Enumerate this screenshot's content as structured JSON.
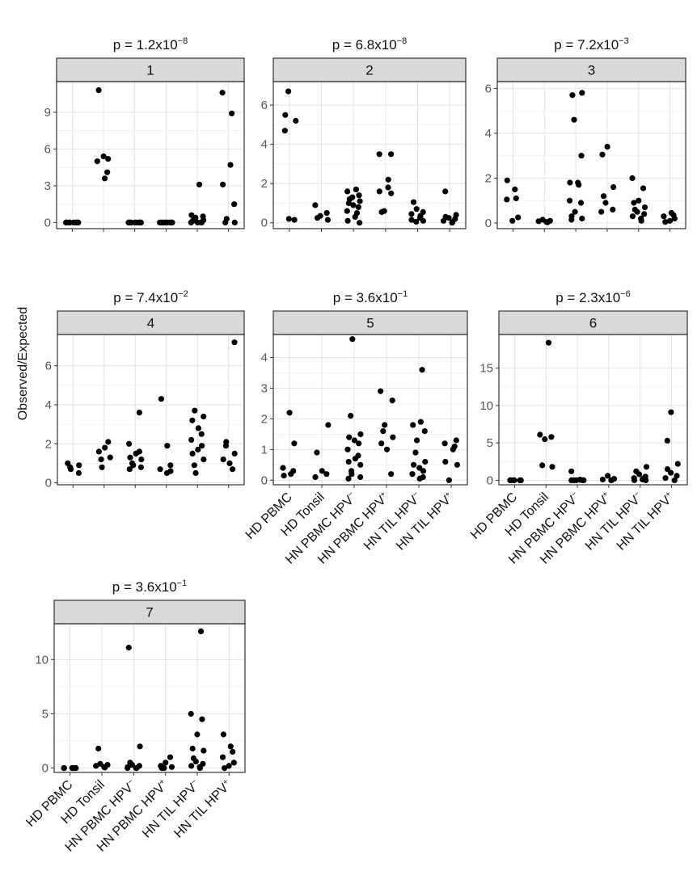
{
  "y_axis_label": "Observed/Expected",
  "chart_data": [
    {
      "type": "scatter",
      "panel": "1",
      "p_mant": "1.2",
      "p_exp": "−8",
      "categories": [
        "HD PBMC",
        "HD Tonsil",
        "HN PBMC HPV−",
        "HN PBMC HPV+",
        "HN TIL HPV−",
        "HN TIL HPV+"
      ],
      "ylim": [
        -0.5,
        11.5
      ],
      "yticks": [
        0,
        3,
        6,
        9
      ],
      "points": [
        [
          0,
          0
        ],
        [
          0,
          0
        ],
        [
          0,
          0
        ],
        [
          0,
          0
        ],
        [
          0,
          0
        ],
        [
          0,
          0
        ],
        [
          0,
          0
        ],
        [
          0,
          0
        ],
        [
          0,
          0
        ],
        [
          0,
          0
        ],
        [
          1,
          10.8
        ],
        [
          1,
          5.4
        ],
        [
          1,
          5.2
        ],
        [
          1,
          5.0
        ],
        [
          1,
          4.1
        ],
        [
          1,
          3.6
        ],
        [
          2,
          0
        ],
        [
          2,
          0
        ],
        [
          2,
          0
        ],
        [
          2,
          0
        ],
        [
          2,
          0
        ],
        [
          2,
          0
        ],
        [
          2,
          0
        ],
        [
          2,
          0
        ],
        [
          2,
          0
        ],
        [
          2,
          0
        ],
        [
          3,
          0
        ],
        [
          3,
          0
        ],
        [
          3,
          0
        ],
        [
          3,
          0
        ],
        [
          3,
          0
        ],
        [
          3,
          0
        ],
        [
          3,
          0
        ],
        [
          3,
          0
        ],
        [
          3,
          0
        ],
        [
          3,
          0
        ],
        [
          4,
          3.1
        ],
        [
          4,
          0.6
        ],
        [
          4,
          0.5
        ],
        [
          4,
          0.4
        ],
        [
          4,
          0.3
        ],
        [
          4,
          0.2
        ],
        [
          4,
          0.1
        ],
        [
          4,
          0
        ],
        [
          4,
          0
        ],
        [
          4,
          0
        ],
        [
          4,
          0
        ],
        [
          5,
          10.6
        ],
        [
          5,
          8.9
        ],
        [
          5,
          4.7
        ],
        [
          5,
          3.1
        ],
        [
          5,
          1.5
        ],
        [
          5,
          0.3
        ],
        [
          5,
          0
        ],
        [
          5,
          0
        ]
      ]
    },
    {
      "type": "scatter",
      "panel": "2",
      "p_mant": "6.8",
      "p_exp": "−8",
      "categories": [
        "HD PBMC",
        "HD Tonsil",
        "HN PBMC HPV−",
        "HN PBMC HPV+",
        "HN TIL HPV−",
        "HN TIL HPV+"
      ],
      "ylim": [
        -0.3,
        7.2
      ],
      "yticks": [
        0,
        2,
        4,
        6
      ],
      "points": [
        [
          0,
          6.7
        ],
        [
          0,
          5.5
        ],
        [
          0,
          5.2
        ],
        [
          0,
          4.7
        ],
        [
          0,
          0.2
        ],
        [
          0,
          0.15
        ],
        [
          1,
          0.9
        ],
        [
          1,
          0.5
        ],
        [
          1,
          0.35
        ],
        [
          1,
          0.25
        ],
        [
          1,
          0.15
        ],
        [
          2,
          1.7
        ],
        [
          2,
          1.7
        ],
        [
          2,
          1.6
        ],
        [
          2,
          1.4
        ],
        [
          2,
          1.3
        ],
        [
          2,
          1.2
        ],
        [
          2,
          1.1
        ],
        [
          2,
          1.0
        ],
        [
          2,
          0.9
        ],
        [
          2,
          0.8
        ],
        [
          2,
          0.6
        ],
        [
          2,
          0.5
        ],
        [
          2,
          0.3
        ],
        [
          2,
          0.1
        ],
        [
          2,
          0
        ],
        [
          3,
          3.5
        ],
        [
          3,
          3.5
        ],
        [
          3,
          2.2
        ],
        [
          3,
          1.8
        ],
        [
          3,
          1.6
        ],
        [
          3,
          1.5
        ],
        [
          3,
          0.6
        ],
        [
          3,
          0.55
        ],
        [
          4,
          1.05
        ],
        [
          4,
          0.7
        ],
        [
          4,
          0.55
        ],
        [
          4,
          0.45
        ],
        [
          4,
          0.35
        ],
        [
          4,
          0.25
        ],
        [
          4,
          0.15
        ],
        [
          4,
          0.1
        ],
        [
          4,
          0.05
        ],
        [
          5,
          1.6
        ],
        [
          5,
          0.4
        ],
        [
          5,
          0.3
        ],
        [
          5,
          0.25
        ],
        [
          5,
          0.2
        ],
        [
          5,
          0.1
        ],
        [
          5,
          0.05
        ],
        [
          5,
          0
        ]
      ]
    },
    {
      "type": "scatter",
      "panel": "3",
      "p_mant": "7.2",
      "p_exp": "−3",
      "categories": [
        "HD PBMC",
        "HD Tonsil",
        "HN PBMC HPV−",
        "HN PBMC HPV+",
        "HN TIL HPV−",
        "HN TIL HPV+"
      ],
      "ylim": [
        -0.25,
        6.3
      ],
      "yticks": [
        0,
        2,
        4,
        6
      ],
      "points": [
        [
          0,
          1.9
        ],
        [
          0,
          1.5
        ],
        [
          0,
          1.1
        ],
        [
          0,
          1.05
        ],
        [
          0,
          0.25
        ],
        [
          0,
          0.1
        ],
        [
          1,
          0.15
        ],
        [
          1,
          0.1
        ],
        [
          1,
          0.08
        ],
        [
          1,
          0.05
        ],
        [
          1,
          0.03
        ],
        [
          2,
          5.8
        ],
        [
          2,
          5.7
        ],
        [
          2,
          4.6
        ],
        [
          2,
          3.0
        ],
        [
          2,
          1.8
        ],
        [
          2,
          1.8
        ],
        [
          2,
          1.7
        ],
        [
          2,
          1.0
        ],
        [
          2,
          0.9
        ],
        [
          2,
          0.5
        ],
        [
          2,
          0.3
        ],
        [
          2,
          0.2
        ],
        [
          2,
          0.15
        ],
        [
          3,
          3.4
        ],
        [
          3,
          3.05
        ],
        [
          3,
          1.6
        ],
        [
          3,
          1.2
        ],
        [
          3,
          0.9
        ],
        [
          3,
          0.6
        ],
        [
          3,
          0.5
        ],
        [
          4,
          2.0
        ],
        [
          4,
          1.55
        ],
        [
          4,
          1.0
        ],
        [
          4,
          0.9
        ],
        [
          4,
          0.7
        ],
        [
          4,
          0.6
        ],
        [
          4,
          0.5
        ],
        [
          4,
          0.4
        ],
        [
          4,
          0.3
        ],
        [
          4,
          0.2
        ],
        [
          4,
          0.1
        ],
        [
          5,
          0.45
        ],
        [
          5,
          0.35
        ],
        [
          5,
          0.3
        ],
        [
          5,
          0.2
        ],
        [
          5,
          0.1
        ],
        [
          5,
          0.05
        ]
      ]
    },
    {
      "type": "scatter",
      "panel": "4",
      "p_mant": "7.4",
      "p_exp": "−2",
      "categories": [
        "HD PBMC",
        "HD Tonsil",
        "HN PBMC HPV−",
        "HN PBMC HPV+",
        "HN TIL HPV−",
        "HN TIL HPV+"
      ],
      "ylim": [
        -0.1,
        7.6
      ],
      "yticks": [
        0,
        2,
        4,
        6
      ],
      "points": [
        [
          0,
          1.0
        ],
        [
          0,
          0.9
        ],
        [
          0,
          0.8
        ],
        [
          0,
          0.7
        ],
        [
          0,
          0.5
        ],
        [
          1,
          2.1
        ],
        [
          1,
          1.8
        ],
        [
          1,
          1.6
        ],
        [
          1,
          1.3
        ],
        [
          1,
          1.2
        ],
        [
          1,
          0.8
        ],
        [
          2,
          3.6
        ],
        [
          2,
          2.0
        ],
        [
          2,
          1.6
        ],
        [
          2,
          1.5
        ],
        [
          2,
          1.3
        ],
        [
          2,
          1.2
        ],
        [
          2,
          1.0
        ],
        [
          2,
          0.9
        ],
        [
          2,
          0.8
        ],
        [
          2,
          0.7
        ],
        [
          3,
          4.3
        ],
        [
          3,
          1.9
        ],
        [
          3,
          0.9
        ],
        [
          3,
          0.7
        ],
        [
          3,
          0.6
        ],
        [
          3,
          0.5
        ],
        [
          4,
          3.7
        ],
        [
          4,
          3.4
        ],
        [
          4,
          3.2
        ],
        [
          4,
          2.8
        ],
        [
          4,
          2.5
        ],
        [
          4,
          2.2
        ],
        [
          4,
          1.9
        ],
        [
          4,
          1.7
        ],
        [
          4,
          1.5
        ],
        [
          4,
          1.2
        ],
        [
          4,
          0.9
        ],
        [
          4,
          0.5
        ],
        [
          5,
          7.2
        ],
        [
          5,
          2.1
        ],
        [
          5,
          1.9
        ],
        [
          5,
          1.5
        ],
        [
          5,
          1.2
        ],
        [
          5,
          1.0
        ],
        [
          5,
          0.7
        ]
      ]
    },
    {
      "type": "scatter",
      "panel": "5",
      "p_mant": "3.6",
      "p_exp": "−1",
      "categories": [
        "HD PBMC",
        "HD Tonsil",
        "HN PBMC HPV−",
        "HN PBMC HPV+",
        "HN TIL HPV−",
        "HN TIL HPV+"
      ],
      "ylim": [
        -0.15,
        4.75
      ],
      "yticks": [
        0,
        1,
        2,
        3,
        4
      ],
      "points": [
        [
          0,
          2.2
        ],
        [
          0,
          1.2
        ],
        [
          0,
          0.4
        ],
        [
          0,
          0.3
        ],
        [
          0,
          0.2
        ],
        [
          0,
          0.15
        ],
        [
          1,
          1.8
        ],
        [
          1,
          0.9
        ],
        [
          1,
          0.3
        ],
        [
          1,
          0.2
        ],
        [
          1,
          0.1
        ],
        [
          2,
          4.6
        ],
        [
          2,
          2.1
        ],
        [
          2,
          1.5
        ],
        [
          2,
          1.4
        ],
        [
          2,
          1.3
        ],
        [
          2,
          1.2
        ],
        [
          2,
          1.0
        ],
        [
          2,
          0.8
        ],
        [
          2,
          0.7
        ],
        [
          2,
          0.6
        ],
        [
          2,
          0.5
        ],
        [
          2,
          0.3
        ],
        [
          2,
          0.2
        ],
        [
          2,
          0.1
        ],
        [
          2,
          0.05
        ],
        [
          3,
          2.9
        ],
        [
          3,
          2.6
        ],
        [
          3,
          1.8
        ],
        [
          3,
          1.6
        ],
        [
          3,
          1.4
        ],
        [
          3,
          1.2
        ],
        [
          3,
          1.0
        ],
        [
          3,
          0.2
        ],
        [
          4,
          3.6
        ],
        [
          4,
          1.9
        ],
        [
          4,
          1.8
        ],
        [
          4,
          1.6
        ],
        [
          4,
          1.3
        ],
        [
          4,
          0.9
        ],
        [
          4,
          0.6
        ],
        [
          4,
          0.5
        ],
        [
          4,
          0.4
        ],
        [
          4,
          0.3
        ],
        [
          4,
          0.2
        ],
        [
          4,
          0.1
        ],
        [
          4,
          0.05
        ],
        [
          5,
          1.3
        ],
        [
          5,
          1.2
        ],
        [
          5,
          1.1
        ],
        [
          5,
          1.0
        ],
        [
          5,
          0.6
        ],
        [
          5,
          0.5
        ],
        [
          5,
          0
        ]
      ]
    },
    {
      "type": "scatter",
      "panel": "6",
      "p_mant": "2.3",
      "p_exp": "−6",
      "categories": [
        "HD PBMC",
        "HD Tonsil",
        "HN PBMC HPV−",
        "HN PBMC HPV+",
        "HN TIL HPV−",
        "HN TIL HPV+"
      ],
      "ylim": [
        -0.6,
        19.5
      ],
      "yticks": [
        0,
        5,
        10,
        15
      ],
      "points": [
        [
          0,
          0
        ],
        [
          0,
          0
        ],
        [
          0,
          0
        ],
        [
          0,
          0
        ],
        [
          0,
          0
        ],
        [
          0,
          0
        ],
        [
          1,
          18.4
        ],
        [
          1,
          6.1
        ],
        [
          1,
          5.8
        ],
        [
          1,
          5.5
        ],
        [
          1,
          2.0
        ],
        [
          1,
          1.8
        ],
        [
          2,
          1.2
        ],
        [
          2,
          0.1
        ],
        [
          2,
          0.05
        ],
        [
          2,
          0
        ],
        [
          2,
          0
        ],
        [
          2,
          0
        ],
        [
          2,
          0
        ],
        [
          2,
          0
        ],
        [
          3,
          0.6
        ],
        [
          3,
          0.2
        ],
        [
          3,
          0.1
        ],
        [
          3,
          0
        ],
        [
          3,
          0
        ],
        [
          4,
          1.8
        ],
        [
          4,
          1.2
        ],
        [
          4,
          0.8
        ],
        [
          4,
          0.5
        ],
        [
          4,
          0.3
        ],
        [
          4,
          0.2
        ],
        [
          4,
          0.1
        ],
        [
          4,
          0
        ],
        [
          4,
          0
        ],
        [
          5,
          9.1
        ],
        [
          5,
          5.3
        ],
        [
          5,
          2.2
        ],
        [
          5,
          1.5
        ],
        [
          5,
          1.0
        ],
        [
          5,
          0.6
        ],
        [
          5,
          0.3
        ],
        [
          5,
          0
        ]
      ]
    },
    {
      "type": "scatter",
      "panel": "7",
      "p_mant": "3.6",
      "p_exp": "−1",
      "categories": [
        "HD PBMC",
        "HD Tonsil",
        "HN PBMC HPV−",
        "HN PBMC HPV+",
        "HN TIL HPV−",
        "HN TIL HPV+"
      ],
      "ylim": [
        -0.4,
        13.3
      ],
      "yticks": [
        0,
        5,
        10
      ],
      "points": [
        [
          0,
          0
        ],
        [
          0,
          0
        ],
        [
          0,
          0
        ],
        [
          0,
          0
        ],
        [
          0,
          0
        ],
        [
          0,
          0
        ],
        [
          1,
          1.8
        ],
        [
          1,
          0.4
        ],
        [
          1,
          0.3
        ],
        [
          1,
          0.2
        ],
        [
          1,
          0.1
        ],
        [
          1,
          0.05
        ],
        [
          2,
          11.1
        ],
        [
          2,
          2.0
        ],
        [
          2,
          0.5
        ],
        [
          2,
          0.3
        ],
        [
          2,
          0.2
        ],
        [
          2,
          0.1
        ],
        [
          2,
          0
        ],
        [
          2,
          0
        ],
        [
          2,
          0
        ],
        [
          3,
          1.0
        ],
        [
          3,
          0.5
        ],
        [
          3,
          0.2
        ],
        [
          3,
          0.1
        ],
        [
          3,
          0
        ],
        [
          3,
          0
        ],
        [
          4,
          12.6
        ],
        [
          4,
          5.0
        ],
        [
          4,
          4.5
        ],
        [
          4,
          3.1
        ],
        [
          4,
          1.8
        ],
        [
          4,
          1.6
        ],
        [
          4,
          0.9
        ],
        [
          4,
          0.6
        ],
        [
          4,
          0.4
        ],
        [
          4,
          0.2
        ],
        [
          4,
          0.1
        ],
        [
          4,
          0
        ],
        [
          5,
          3.1
        ],
        [
          5,
          2.0
        ],
        [
          5,
          1.5
        ],
        [
          5,
          1.0
        ],
        [
          5,
          0.5
        ],
        [
          5,
          0.2
        ],
        [
          5,
          0
        ]
      ]
    }
  ]
}
